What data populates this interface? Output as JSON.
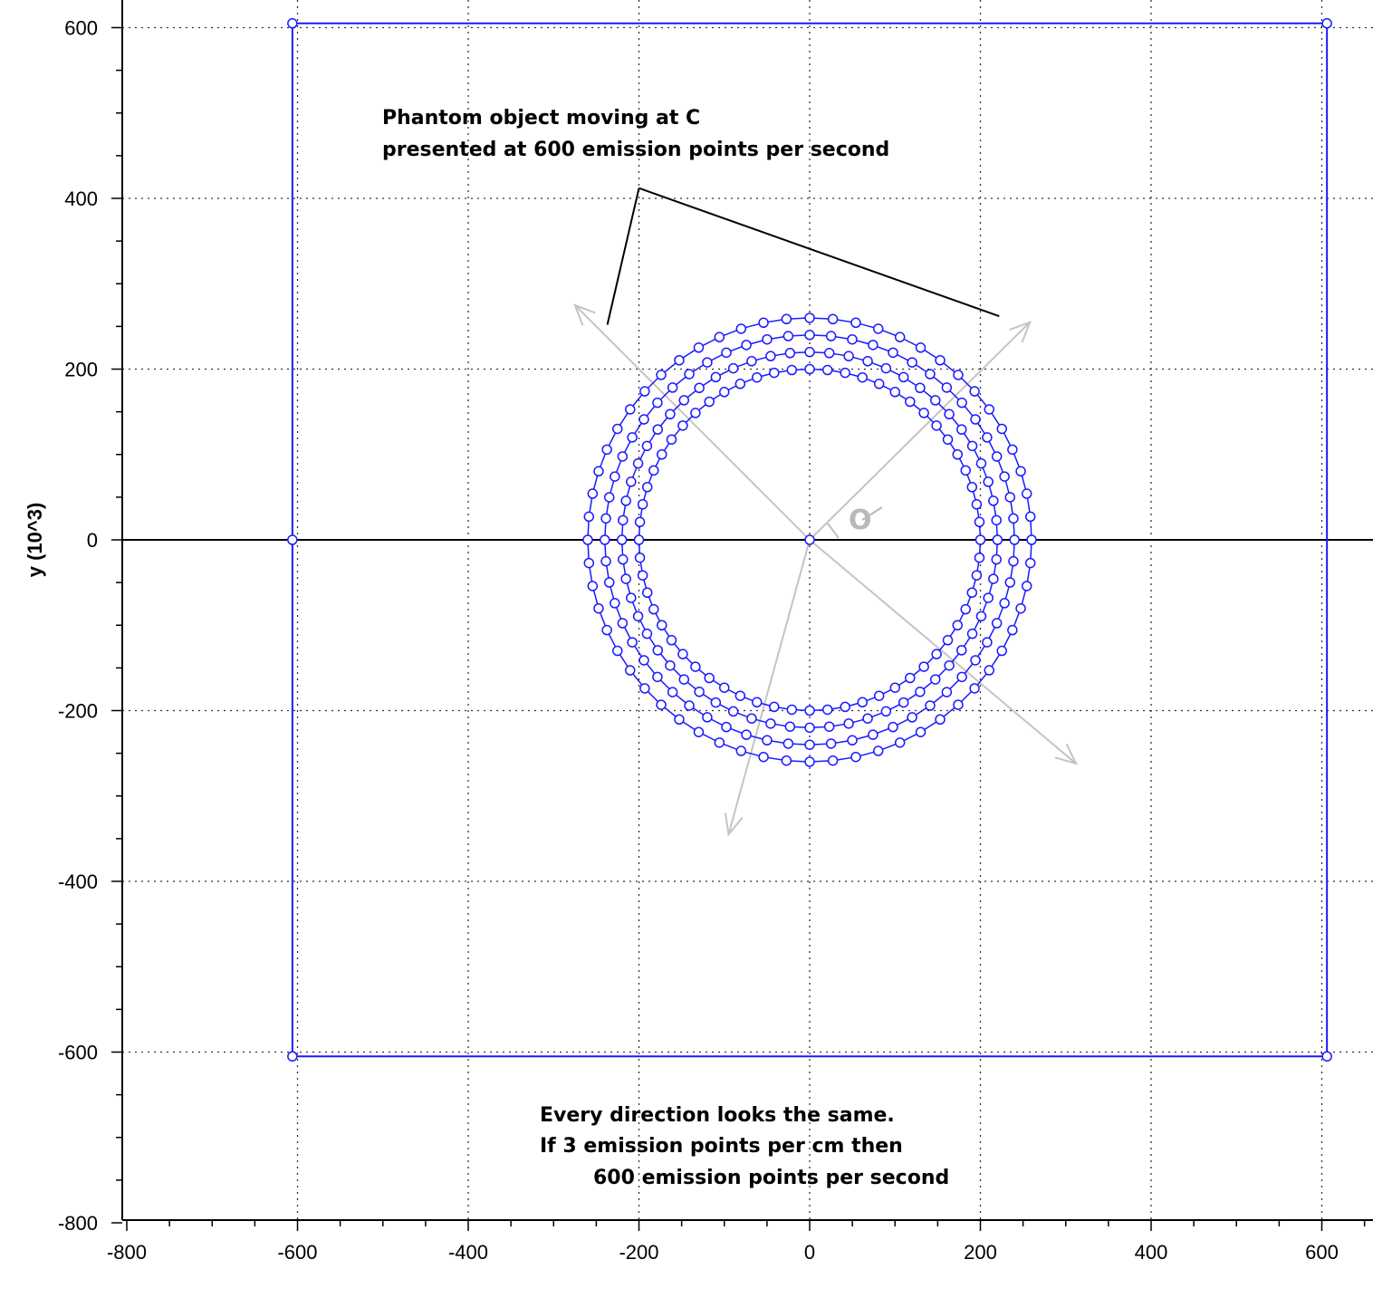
{
  "chart_data": {
    "type": "scatter",
    "title": "",
    "xlabel": "",
    "ylabel": "y (10^3)",
    "xlim": [
      -800,
      650
    ],
    "ylim": [
      -800,
      600
    ],
    "x_ticks": [
      -800,
      -600,
      -400,
      -200,
      0,
      200,
      400,
      600
    ],
    "y_ticks": [
      -800,
      -600,
      -400,
      -200,
      0,
      200,
      400,
      600
    ],
    "grid": true,
    "series_color": "#1a1aff",
    "series": [
      {
        "kind": "polyline",
        "points": [
          [
            -606,
            605
          ],
          [
            606,
            605
          ],
          [
            606,
            -605
          ],
          [
            -606,
            -605
          ],
          [
            -606,
            605
          ]
        ]
      },
      {
        "kind": "markers",
        "points": [
          [
            -606,
            605
          ],
          [
            606,
            605
          ],
          [
            606,
            -605
          ],
          [
            -606,
            -605
          ],
          [
            -606,
            0
          ],
          [
            0,
            0
          ]
        ]
      },
      {
        "kind": "ring",
        "center": [
          0,
          0
        ],
        "radius": 200,
        "points": 60
      },
      {
        "kind": "ring",
        "center": [
          0,
          0
        ],
        "radius": 220,
        "points": 60
      },
      {
        "kind": "ring",
        "center": [
          0,
          0
        ],
        "radius": 240,
        "points": 60
      },
      {
        "kind": "ring",
        "center": [
          0,
          0
        ],
        "radius": 260,
        "points": 60
      }
    ],
    "direction_arrows": [
      {
        "from": [
          0,
          0
        ],
        "to": [
          -275,
          275
        ]
      },
      {
        "from": [
          0,
          0
        ],
        "to": [
          258,
          255
        ]
      },
      {
        "from": [
          0,
          0
        ],
        "to": [
          312,
          -262
        ]
      },
      {
        "from": [
          0,
          0
        ],
        "to": [
          -95,
          -345
        ]
      }
    ],
    "theta_label": "O",
    "annotations": [
      {
        "name": "phantom-note",
        "lines": [
          "Phantom object moving at C",
          "presented at 600 emission points per second"
        ]
      },
      {
        "name": "direction-note",
        "lines": [
          "Every direction looks the same.",
          "If 3 emission points per cm then",
          "600 emission points per second"
        ]
      }
    ],
    "pointer_lines": [
      {
        "from": [
          -200,
          412
        ],
        "to": [
          -237,
          252
        ]
      },
      {
        "from": [
          -200,
          412
        ],
        "to": [
          222,
          262
        ]
      }
    ]
  }
}
